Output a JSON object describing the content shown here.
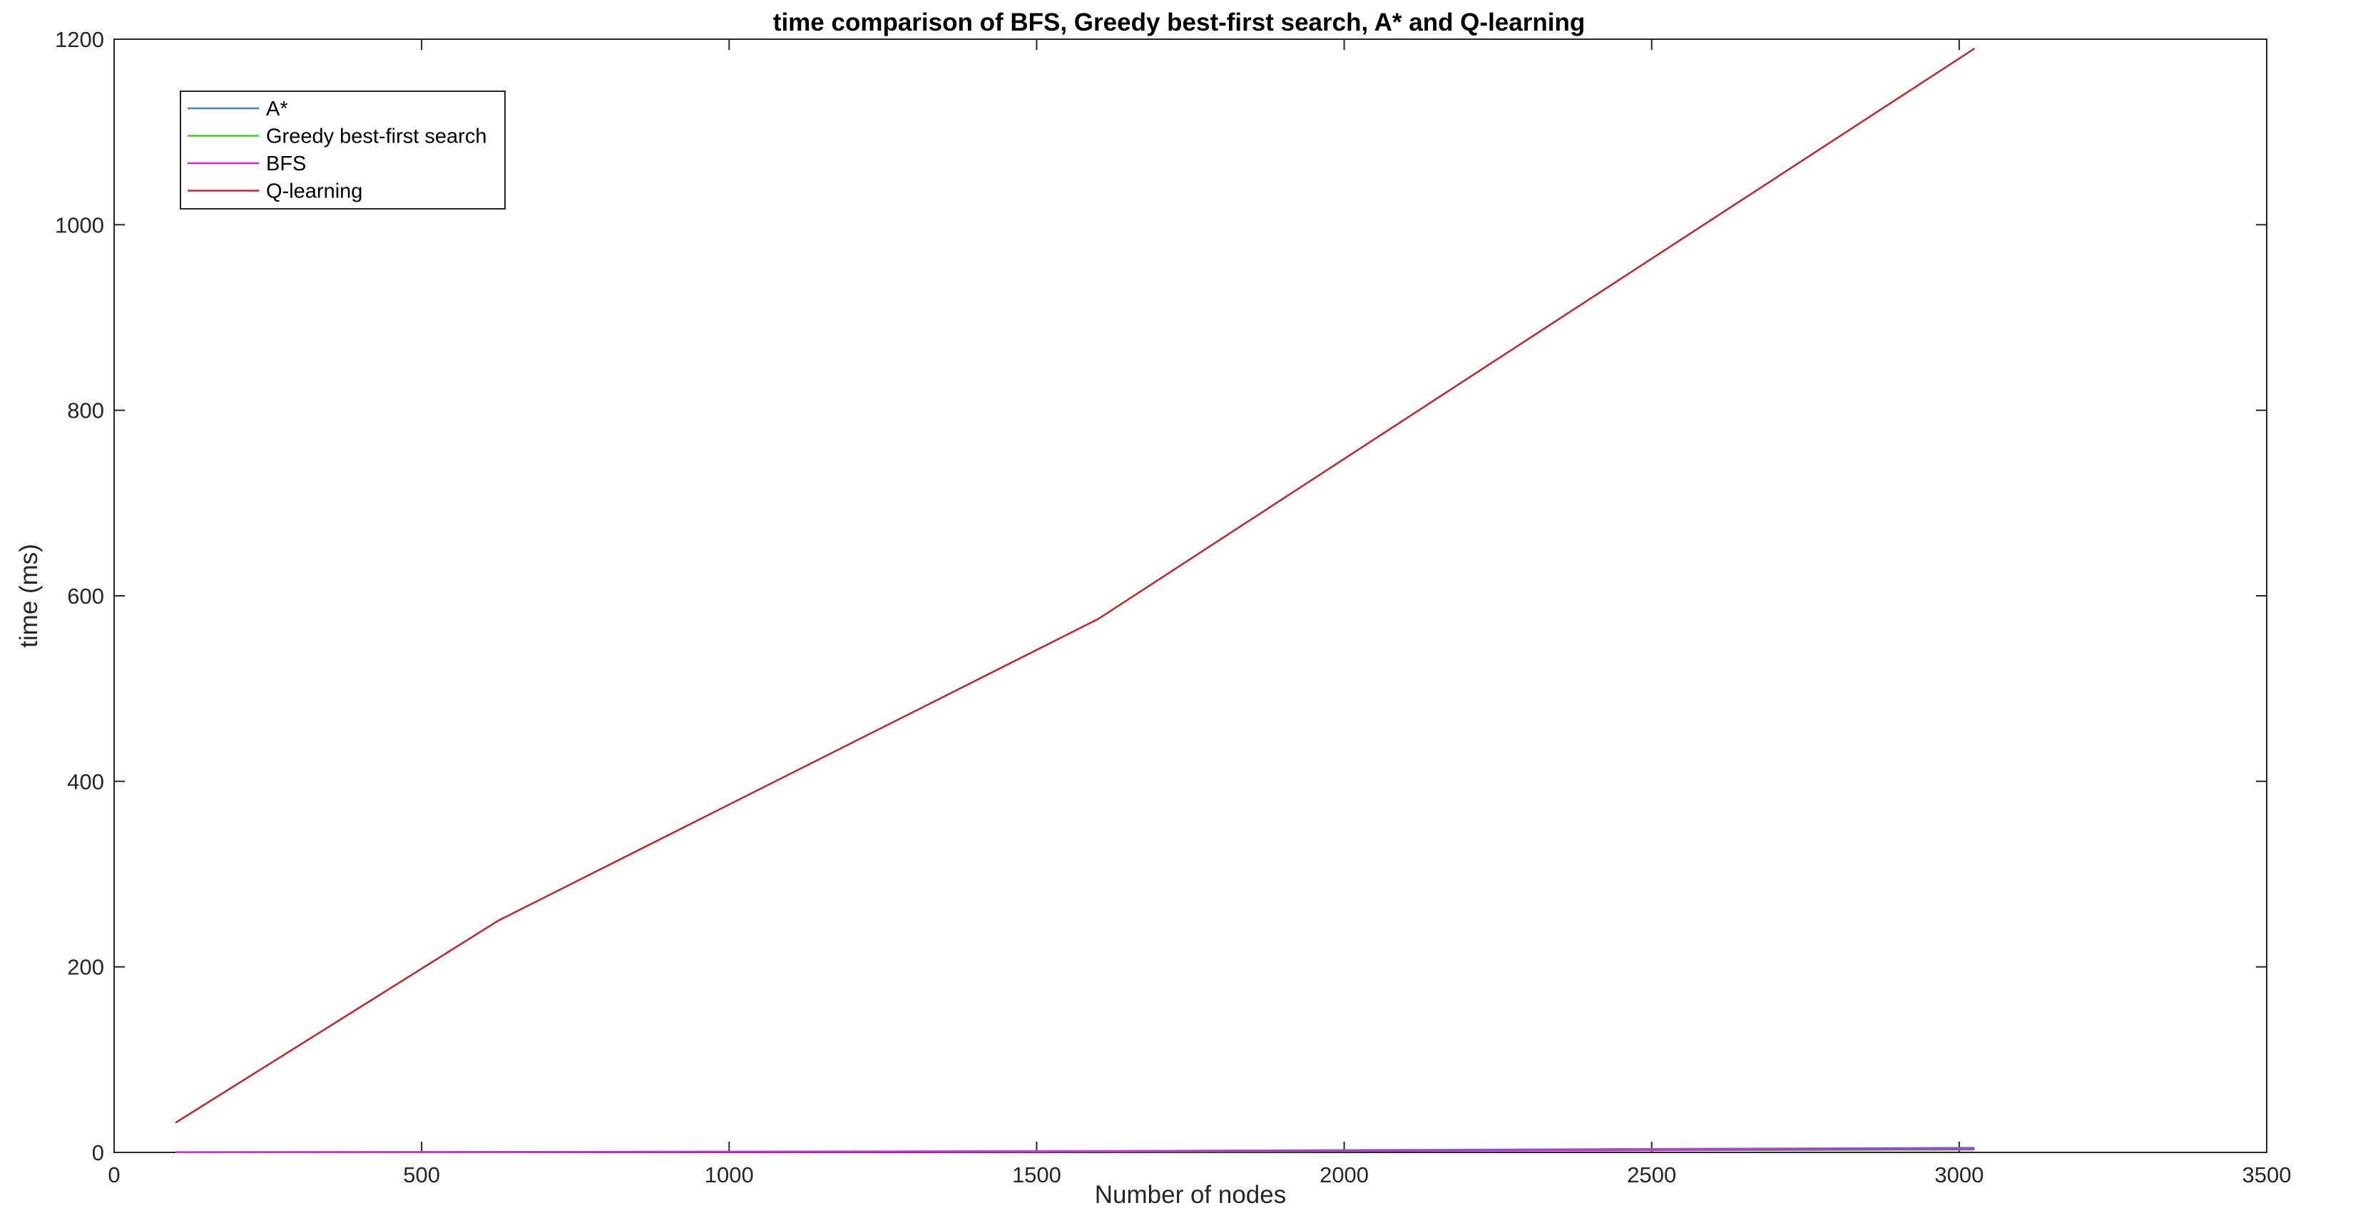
{
  "chart_data": {
    "type": "line",
    "title": "time comparison of BFS, Greedy best-first search, A* and Q-learning",
    "xlabel": "Number of nodes",
    "ylabel": "time (ms)",
    "xlim": [
      0,
      3500
    ],
    "ylim": [
      0,
      1200
    ],
    "xticks": [
      0,
      500,
      1000,
      1500,
      2000,
      2500,
      3000,
      3500
    ],
    "yticks": [
      0,
      200,
      400,
      600,
      800,
      1000,
      1200
    ],
    "grid": false,
    "legend_position": "top-left",
    "series": [
      {
        "name": "A*",
        "color": "#4f7fb3",
        "x": [
          100,
          625,
          1600,
          3025
        ],
        "y": [
          0.2,
          0.4,
          1.5,
          5
        ]
      },
      {
        "name": "Greedy best-first search",
        "color": "#1ee11e",
        "x": [
          100,
          625,
          1600,
          3025
        ],
        "y": [
          0.1,
          0.3,
          1,
          3
        ]
      },
      {
        "name": "BFS",
        "color": "#e31ee3",
        "x": [
          100,
          625,
          1600,
          3025
        ],
        "y": [
          0.3,
          0.5,
          1.2,
          3.5
        ]
      },
      {
        "name": "Q-learning",
        "color": "#c1272d",
        "x": [
          100,
          625,
          1600,
          3025
        ],
        "y": [
          32,
          250,
          575,
          1190
        ]
      }
    ]
  }
}
